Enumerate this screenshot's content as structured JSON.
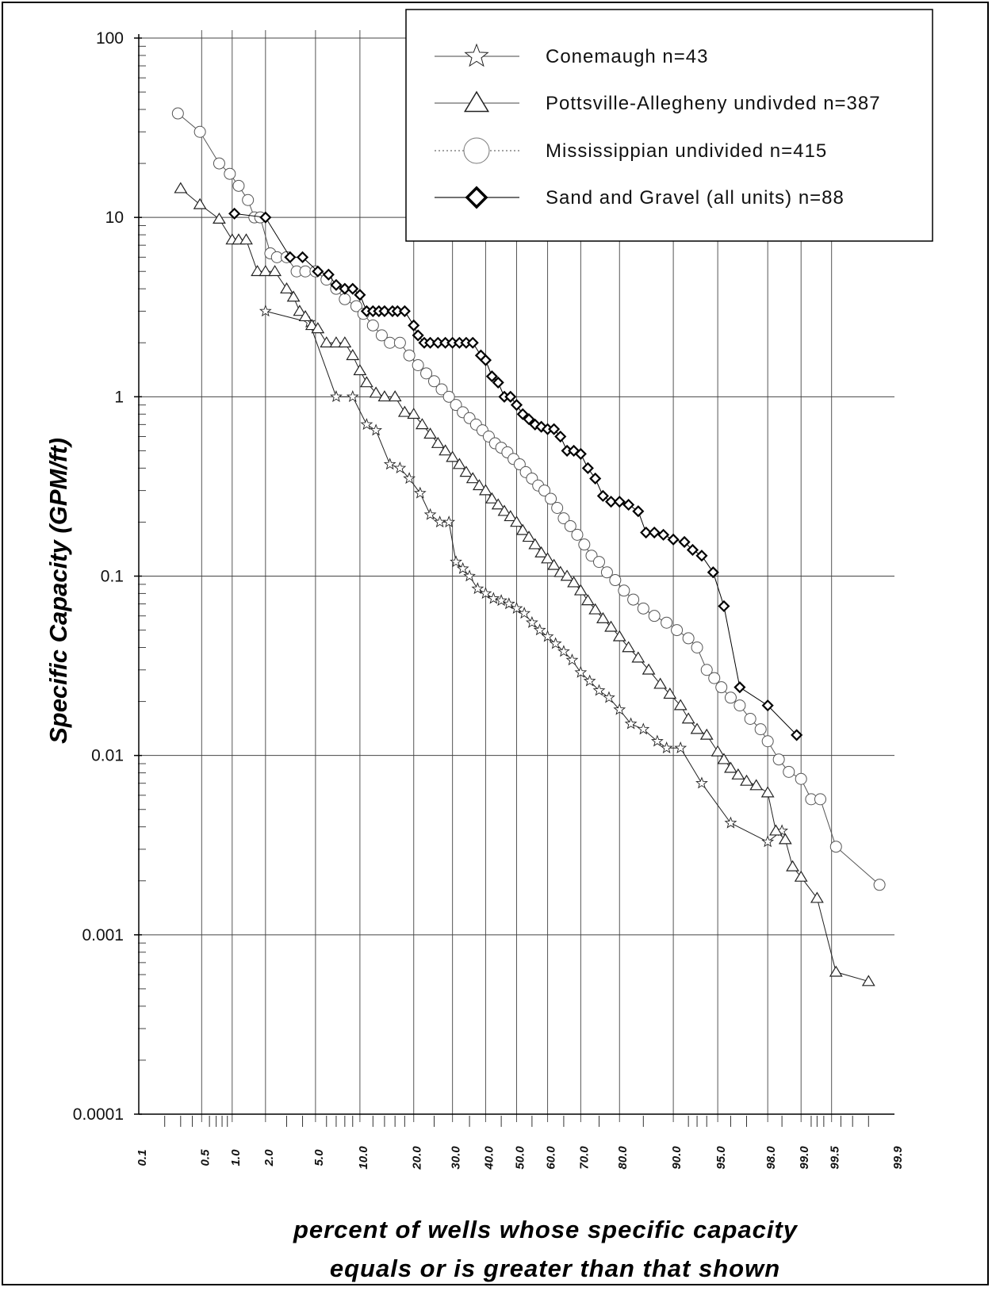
{
  "chart_data": {
    "type": "scatter",
    "xlabel_lines": [
      "percent of wells whose specific capacity",
      "equals or is greater than that shown"
    ],
    "ylabel": "Specific Capacity  (GPM/ft)",
    "x_scale": "normal-probability",
    "y_scale": "log",
    "ylim": [
      0.0001,
      100
    ],
    "xlim": [
      0.1,
      99.9
    ],
    "x_ticks": [
      "0.1",
      "0.5",
      "1.0",
      "2.0",
      "5.0",
      "10.0",
      "20.0",
      "30.0",
      "40.0",
      "50.0",
      "60.0",
      "70.0",
      "80.0",
      "90.0",
      "95.0",
      "98.0",
      "99.0",
      "99.5",
      "99.9"
    ],
    "y_ticks": [
      "100",
      "10",
      "1",
      "0.1",
      "0.01",
      "0.001",
      "0.0001"
    ],
    "legend_placement": "top-right",
    "series": [
      {
        "name": "Conemaugh n=43",
        "marker": "star",
        "color": "#222222",
        "points": [
          [
            2.0,
            3.0
          ],
          [
            4.5,
            2.6
          ],
          [
            7.0,
            1.0
          ],
          [
            9.0,
            1.0
          ],
          [
            11.0,
            0.7
          ],
          [
            12.5,
            0.65
          ],
          [
            15.0,
            0.42
          ],
          [
            17.0,
            0.4
          ],
          [
            19.0,
            0.35
          ],
          [
            21.5,
            0.29
          ],
          [
            24.0,
            0.22
          ],
          [
            26.5,
            0.2
          ],
          [
            29.0,
            0.2
          ],
          [
            31.0,
            0.12
          ],
          [
            33.0,
            0.11
          ],
          [
            35.0,
            0.1
          ],
          [
            37.5,
            0.085
          ],
          [
            40.0,
            0.08
          ],
          [
            42.5,
            0.075
          ],
          [
            45.0,
            0.073
          ],
          [
            47.5,
            0.07
          ],
          [
            50.0,
            0.066
          ],
          [
            52.5,
            0.062
          ],
          [
            55.0,
            0.055
          ],
          [
            57.5,
            0.05
          ],
          [
            60.0,
            0.046
          ],
          [
            62.5,
            0.042
          ],
          [
            65.0,
            0.038
          ],
          [
            67.5,
            0.034
          ],
          [
            70.0,
            0.029
          ],
          [
            72.5,
            0.026
          ],
          [
            75.0,
            0.023
          ],
          [
            77.5,
            0.021
          ],
          [
            80.0,
            0.018
          ],
          [
            82.5,
            0.015
          ],
          [
            85.0,
            0.014
          ],
          [
            87.5,
            0.012
          ],
          [
            89.0,
            0.011
          ],
          [
            91.0,
            0.011
          ],
          [
            93.5,
            0.007
          ],
          [
            96.0,
            0.0042
          ],
          [
            98.0,
            0.0033
          ],
          [
            98.5,
            0.0038
          ]
        ]
      },
      {
        "name": "Pottsville-Allegheny undivded n=387",
        "marker": "triangle",
        "color": "#222222",
        "points": [
          [
            0.3,
            14.5
          ],
          [
            0.48,
            11.8
          ],
          [
            0.75,
            9.8
          ],
          [
            1.0,
            7.5
          ],
          [
            1.15,
            7.5
          ],
          [
            1.35,
            7.5
          ],
          [
            1.7,
            5.0
          ],
          [
            2.0,
            5.0
          ],
          [
            2.4,
            5.0
          ],
          [
            3.0,
            4.0
          ],
          [
            3.4,
            3.6
          ],
          [
            3.8,
            3.0
          ],
          [
            4.2,
            2.8
          ],
          [
            4.7,
            2.5
          ],
          [
            5.2,
            2.4
          ],
          [
            6.0,
            2.0
          ],
          [
            7.0,
            2.0
          ],
          [
            8.0,
            2.0
          ],
          [
            9.0,
            1.7
          ],
          [
            10.0,
            1.4
          ],
          [
            11.0,
            1.2
          ],
          [
            12.5,
            1.05
          ],
          [
            14.0,
            1.0
          ],
          [
            16.0,
            1.0
          ],
          [
            18.0,
            0.82
          ],
          [
            20.0,
            0.8
          ],
          [
            22.0,
            0.7
          ],
          [
            24.0,
            0.62
          ],
          [
            26.0,
            0.55
          ],
          [
            28.0,
            0.5
          ],
          [
            30.0,
            0.46
          ],
          [
            32.0,
            0.42
          ],
          [
            34.0,
            0.38
          ],
          [
            36.0,
            0.35
          ],
          [
            38.0,
            0.32
          ],
          [
            40.0,
            0.3
          ],
          [
            42.0,
            0.27
          ],
          [
            44.0,
            0.25
          ],
          [
            46.0,
            0.23
          ],
          [
            48.0,
            0.215
          ],
          [
            50.0,
            0.2
          ],
          [
            52.0,
            0.18
          ],
          [
            54.0,
            0.165
          ],
          [
            56.0,
            0.15
          ],
          [
            58.0,
            0.135
          ],
          [
            60.0,
            0.125
          ],
          [
            62.0,
            0.115
          ],
          [
            64.0,
            0.105
          ],
          [
            66.0,
            0.1
          ],
          [
            68.0,
            0.092
          ],
          [
            70.0,
            0.083
          ],
          [
            72.0,
            0.073
          ],
          [
            74.0,
            0.065
          ],
          [
            76.0,
            0.058
          ],
          [
            78.0,
            0.052
          ],
          [
            80.0,
            0.046
          ],
          [
            82.0,
            0.04
          ],
          [
            84.0,
            0.035
          ],
          [
            86.0,
            0.03
          ],
          [
            88.0,
            0.025
          ],
          [
            89.5,
            0.022
          ],
          [
            91.0,
            0.019
          ],
          [
            92.0,
            0.016
          ],
          [
            93.0,
            0.014
          ],
          [
            94.0,
            0.013
          ],
          [
            95.0,
            0.0105
          ],
          [
            95.5,
            0.0095
          ],
          [
            96.0,
            0.0085
          ],
          [
            96.5,
            0.0078
          ],
          [
            97.0,
            0.0072
          ],
          [
            97.5,
            0.0068
          ],
          [
            98.0,
            0.0062
          ],
          [
            98.3,
            0.0038
          ],
          [
            98.6,
            0.0034
          ],
          [
            98.8,
            0.0024
          ],
          [
            99.0,
            0.0021
          ],
          [
            99.3,
            0.0016
          ],
          [
            99.55,
            0.00062
          ],
          [
            99.8,
            0.00055
          ]
        ]
      },
      {
        "name": "Mississippian  undivided n=415",
        "marker": "circle",
        "color": "#555555",
        "points": [
          [
            0.28,
            38.0
          ],
          [
            0.48,
            30.0
          ],
          [
            0.75,
            20.0
          ],
          [
            0.95,
            17.5
          ],
          [
            1.15,
            15.0
          ],
          [
            1.4,
            12.5
          ],
          [
            1.6,
            10.0
          ],
          [
            1.8,
            10.0
          ],
          [
            2.2,
            6.3
          ],
          [
            2.5,
            6.0
          ],
          [
            3.0,
            6.0
          ],
          [
            3.6,
            5.0
          ],
          [
            4.2,
            5.0
          ],
          [
            5.0,
            5.0
          ],
          [
            6.0,
            4.5
          ],
          [
            7.0,
            4.0
          ],
          [
            8.0,
            3.5
          ],
          [
            9.5,
            3.2
          ],
          [
            10.5,
            2.9
          ],
          [
            12.0,
            2.5
          ],
          [
            13.5,
            2.2
          ],
          [
            15.0,
            2.0
          ],
          [
            17.0,
            2.0
          ],
          [
            19.0,
            1.7
          ],
          [
            21.0,
            1.5
          ],
          [
            23.0,
            1.35
          ],
          [
            25.0,
            1.22
          ],
          [
            27.0,
            1.1
          ],
          [
            29.0,
            1.0
          ],
          [
            31.0,
            0.9
          ],
          [
            33.0,
            0.82
          ],
          [
            35.0,
            0.76
          ],
          [
            37.0,
            0.7
          ],
          [
            39.0,
            0.65
          ],
          [
            41.0,
            0.6
          ],
          [
            43.0,
            0.55
          ],
          [
            45.0,
            0.52
          ],
          [
            47.0,
            0.49
          ],
          [
            49.0,
            0.45
          ],
          [
            51.0,
            0.42
          ],
          [
            53.0,
            0.38
          ],
          [
            55.0,
            0.35
          ],
          [
            57.0,
            0.32
          ],
          [
            59.0,
            0.3
          ],
          [
            61.0,
            0.27
          ],
          [
            63.0,
            0.24
          ],
          [
            65.0,
            0.21
          ],
          [
            67.0,
            0.19
          ],
          [
            69.0,
            0.17
          ],
          [
            71.0,
            0.15
          ],
          [
            73.0,
            0.13
          ],
          [
            75.0,
            0.12
          ],
          [
            77.0,
            0.105
          ],
          [
            79.0,
            0.095
          ],
          [
            81.0,
            0.083
          ],
          [
            83.0,
            0.074
          ],
          [
            85.0,
            0.066
          ],
          [
            87.0,
            0.06
          ],
          [
            89.0,
            0.055
          ],
          [
            90.5,
            0.05
          ],
          [
            92.0,
            0.045
          ],
          [
            93.0,
            0.04
          ],
          [
            94.0,
            0.03
          ],
          [
            94.7,
            0.027
          ],
          [
            95.3,
            0.024
          ],
          [
            96.0,
            0.021
          ],
          [
            96.6,
            0.019
          ],
          [
            97.2,
            0.016
          ],
          [
            97.7,
            0.014
          ],
          [
            98.0,
            0.012
          ],
          [
            98.4,
            0.0095
          ],
          [
            98.7,
            0.0081
          ],
          [
            99.0,
            0.0074
          ],
          [
            99.2,
            0.0057
          ],
          [
            99.35,
            0.0057
          ],
          [
            99.55,
            0.0031
          ],
          [
            99.85,
            0.0019
          ]
        ]
      },
      {
        "name": "Sand and Gravel (all units) n=88",
        "marker": "diamond",
        "color": "#000000",
        "points": [
          [
            1.05,
            10.5
          ],
          [
            2.0,
            10.0
          ],
          [
            3.2,
            6.0
          ],
          [
            4.0,
            6.0
          ],
          [
            5.2,
            5.0
          ],
          [
            6.2,
            4.8
          ],
          [
            7.0,
            4.2
          ],
          [
            8.0,
            4.0
          ],
          [
            9.0,
            4.0
          ],
          [
            10.0,
            3.7
          ],
          [
            11.0,
            3.0
          ],
          [
            12.0,
            3.0
          ],
          [
            13.0,
            3.0
          ],
          [
            14.0,
            3.0
          ],
          [
            15.5,
            3.0
          ],
          [
            16.5,
            3.0
          ],
          [
            18.0,
            3.0
          ],
          [
            20.0,
            2.5
          ],
          [
            21.0,
            2.2
          ],
          [
            22.5,
            2.0
          ],
          [
            24.0,
            2.0
          ],
          [
            26.0,
            2.0
          ],
          [
            28.0,
            2.0
          ],
          [
            30.0,
            2.0
          ],
          [
            32.0,
            2.0
          ],
          [
            34.0,
            2.0
          ],
          [
            36.0,
            2.0
          ],
          [
            38.5,
            1.7
          ],
          [
            40.0,
            1.6
          ],
          [
            42.0,
            1.3
          ],
          [
            44.0,
            1.2
          ],
          [
            46.0,
            1.0
          ],
          [
            48.0,
            1.0
          ],
          [
            50.0,
            0.9
          ],
          [
            52.0,
            0.8
          ],
          [
            54.0,
            0.75
          ],
          [
            56.0,
            0.7
          ],
          [
            58.0,
            0.68
          ],
          [
            60.0,
            0.66
          ],
          [
            62.0,
            0.66
          ],
          [
            64.0,
            0.6
          ],
          [
            66.0,
            0.5
          ],
          [
            68.0,
            0.5
          ],
          [
            70.0,
            0.48
          ],
          [
            72.0,
            0.4
          ],
          [
            74.0,
            0.35
          ],
          [
            76.0,
            0.28
          ],
          [
            78.0,
            0.26
          ],
          [
            80.0,
            0.26
          ],
          [
            82.0,
            0.25
          ],
          [
            84.0,
            0.23
          ],
          [
            85.5,
            0.175
          ],
          [
            87.0,
            0.175
          ],
          [
            88.5,
            0.17
          ],
          [
            90.0,
            0.16
          ],
          [
            91.5,
            0.155
          ],
          [
            92.5,
            0.14
          ],
          [
            93.5,
            0.13
          ],
          [
            94.6,
            0.105
          ],
          [
            95.5,
            0.068
          ],
          [
            96.6,
            0.024
          ],
          [
            98.0,
            0.019
          ],
          [
            98.9,
            0.013
          ]
        ]
      }
    ]
  }
}
